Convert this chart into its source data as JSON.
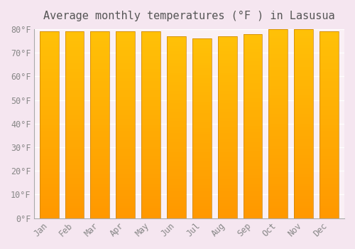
{
  "title": "Average monthly temperatures (°F ) in Lasusua",
  "months": [
    "Jan",
    "Feb",
    "Mar",
    "Apr",
    "May",
    "Jun",
    "Jul",
    "Aug",
    "Sep",
    "Oct",
    "Nov",
    "Dec"
  ],
  "values": [
    79,
    79,
    79,
    79,
    79,
    77,
    76,
    77,
    78,
    80,
    80,
    79
  ],
  "ylim": [
    0,
    80
  ],
  "yticks": [
    0,
    10,
    20,
    30,
    40,
    50,
    60,
    70,
    80
  ],
  "ytick_labels": [
    "0°F",
    "10°F",
    "20°F",
    "30°F",
    "40°F",
    "50°F",
    "60°F",
    "70°F",
    "80°F"
  ],
  "bar_color_top": "#FFC107",
  "bar_color_bottom": "#FF9800",
  "bar_edge_color": "#C8820A",
  "background_color": "#F5E6F0",
  "plot_bg_color": "#FAF0F5",
  "grid_color": "#FFFFFF",
  "title_fontsize": 11,
  "tick_fontsize": 8.5,
  "title_color": "#555555",
  "tick_color": "#888888"
}
